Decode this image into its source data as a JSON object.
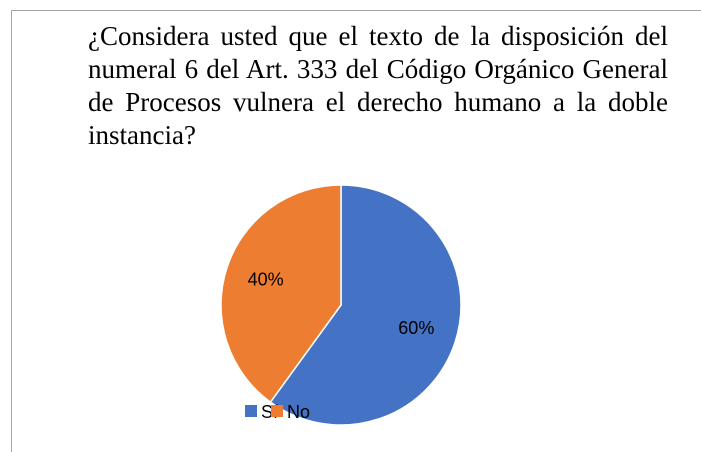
{
  "chart_data": {
    "type": "pie",
    "title": "¿Considera usted que el texto de la disposición del numeral 6 del Art. 333 del Código Orgánico General de Procesos vulnera el derecho humano a la doble instancia?",
    "categories": [
      "Sí",
      "No"
    ],
    "values": [
      60,
      40
    ],
    "value_labels": [
      "60%",
      "40%"
    ],
    "colors": [
      "#4472c4",
      "#ed7d31"
    ],
    "legend": "bottom"
  }
}
